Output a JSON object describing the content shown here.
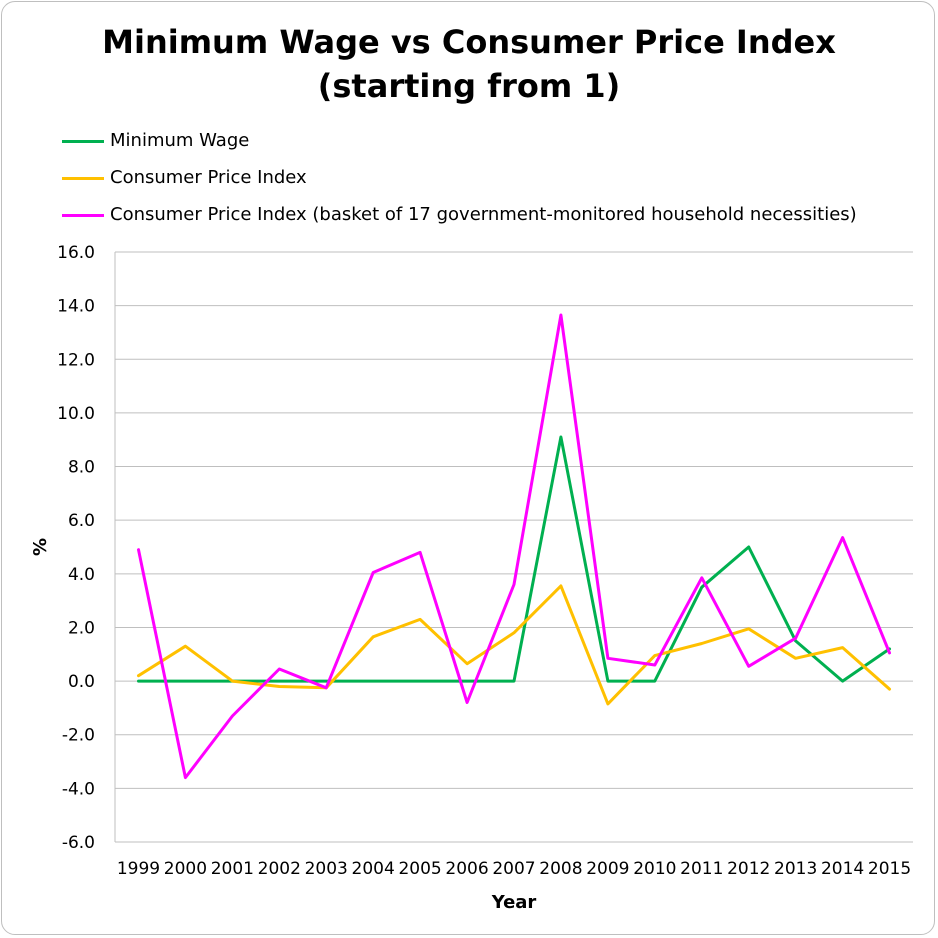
{
  "chart_data": {
    "type": "line",
    "title_lines": [
      "Minimum Wage vs Consumer Price Index",
      "(starting from 1)"
    ],
    "xlabel": "Year",
    "ylabel": "%",
    "categories": [
      "1999",
      "2000",
      "2001",
      "2002",
      "2003",
      "2004",
      "2005",
      "2006",
      "2007",
      "2008",
      "2009",
      "2010",
      "2011",
      "2012",
      "2013",
      "2014",
      "2015"
    ],
    "ylim": [
      -6,
      16
    ],
    "yticks": [
      -6,
      -4,
      -2,
      0,
      2,
      4,
      6,
      8,
      10,
      12,
      14,
      16
    ],
    "ytick_labels": [
      "-6.0",
      "-4.0",
      "-2.0",
      "0.0",
      "2.0",
      "4.0",
      "6.0",
      "8.0",
      "10.0",
      "12.0",
      "14.0",
      "16.0"
    ],
    "grid": true,
    "legend_position": "top-left",
    "series": [
      {
        "name": "Minimum Wage",
        "color": "#00b050",
        "values": [
          0,
          0,
          0,
          0,
          0,
          0,
          0,
          0,
          0,
          9.1,
          0,
          0,
          3.5,
          5.0,
          1.5,
          0,
          1.2
        ]
      },
      {
        "name": "Consumer Price Index",
        "color": "#ffc000",
        "values": [
          0.2,
          1.3,
          0.0,
          -0.2,
          -0.25,
          1.65,
          2.3,
          0.65,
          1.8,
          3.55,
          -0.85,
          0.95,
          1.4,
          1.95,
          0.85,
          1.25,
          -0.3
        ]
      },
      {
        "name": "Consumer Price Index (basket of 17 government-monitored household necessities)",
        "color": "#ff00ff",
        "values": [
          4.9,
          -3.6,
          -1.3,
          0.45,
          -0.25,
          4.05,
          4.8,
          -0.8,
          3.6,
          13.65,
          0.85,
          0.6,
          3.85,
          0.55,
          1.6,
          5.35,
          1.05
        ]
      }
    ]
  }
}
